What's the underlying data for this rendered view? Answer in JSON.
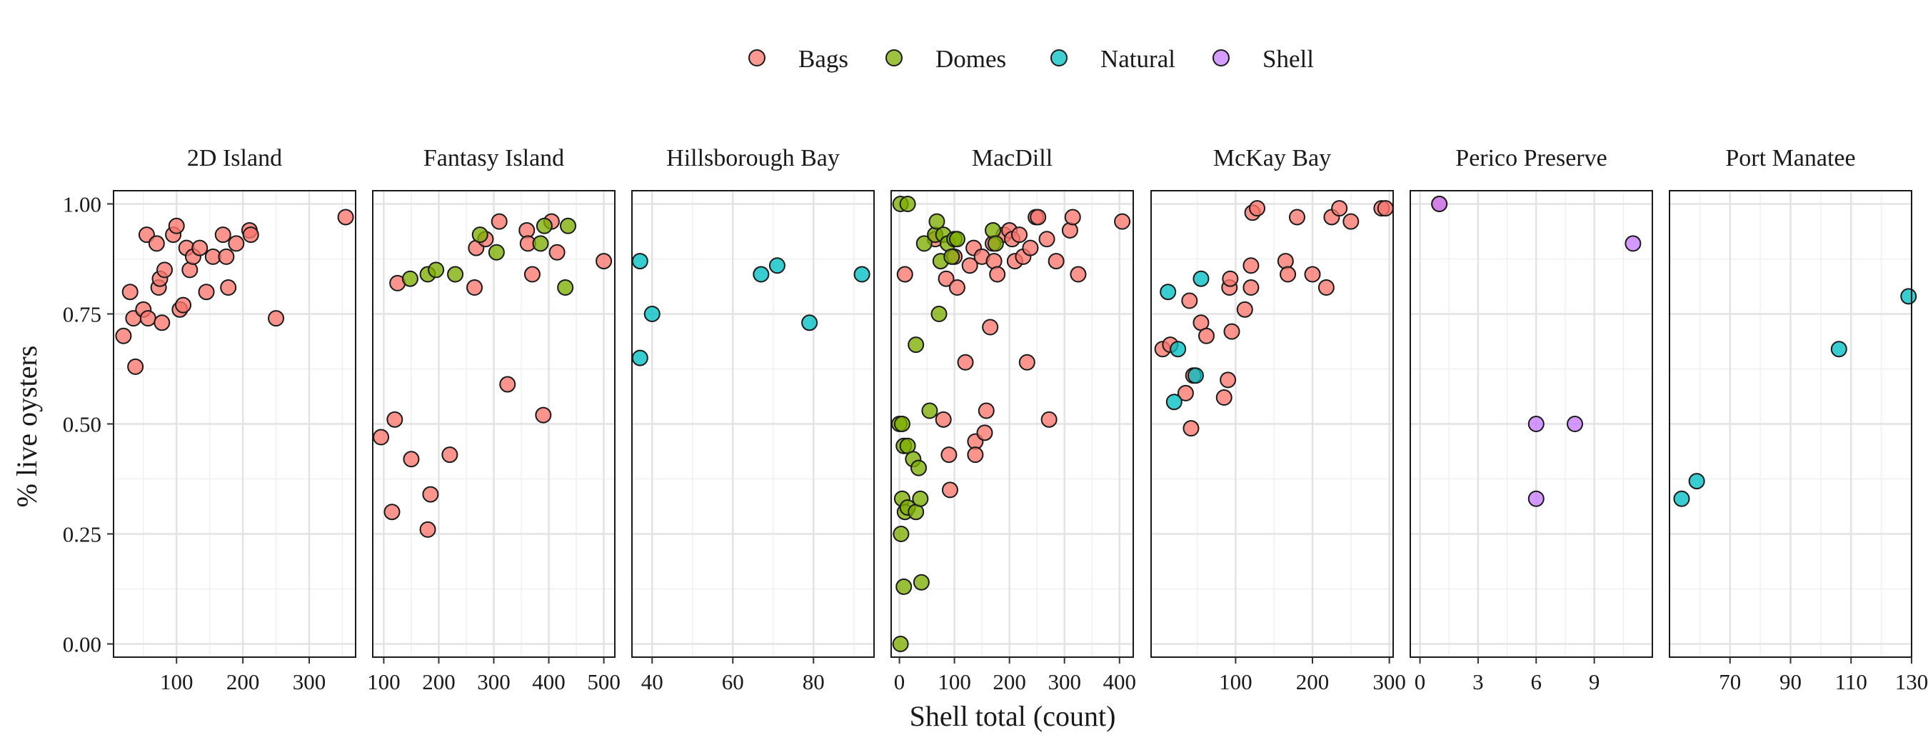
{
  "chart_data": {
    "type": "scatter",
    "xlabel": "Shell total (count)",
    "ylabel": "% live oysters",
    "ylim": [
      -0.03,
      1.03
    ],
    "y_ticks": [
      "0.00",
      "0.25",
      "0.50",
      "0.75",
      "1.00"
    ],
    "grid": true,
    "legend_position": "top",
    "legend": [
      {
        "name": "Bags",
        "color": "#F8766D"
      },
      {
        "name": "Domes",
        "color": "#7CAE00"
      },
      {
        "name": "Natural",
        "color": "#00BFC4"
      },
      {
        "name": "Shell",
        "color": "#C77CFF"
      }
    ],
    "facets": [
      {
        "title": "2D Island",
        "xlim": [
          5,
          370
        ],
        "x_ticks": [
          100,
          200,
          300
        ],
        "points": [
          {
            "g": "Bags",
            "x": 20,
            "y": 0.7
          },
          {
            "g": "Bags",
            "x": 30,
            "y": 0.8
          },
          {
            "g": "Bags",
            "x": 35,
            "y": 0.74
          },
          {
            "g": "Bags",
            "x": 38,
            "y": 0.63
          },
          {
            "g": "Bags",
            "x": 50,
            "y": 0.76
          },
          {
            "g": "Bags",
            "x": 55,
            "y": 0.93
          },
          {
            "g": "Bags",
            "x": 57,
            "y": 0.74
          },
          {
            "g": "Bags",
            "x": 70,
            "y": 0.91
          },
          {
            "g": "Bags",
            "x": 73,
            "y": 0.81
          },
          {
            "g": "Bags",
            "x": 75,
            "y": 0.83
          },
          {
            "g": "Bags",
            "x": 78,
            "y": 0.73
          },
          {
            "g": "Bags",
            "x": 82,
            "y": 0.85
          },
          {
            "g": "Bags",
            "x": 95,
            "y": 0.93
          },
          {
            "g": "Bags",
            "x": 100,
            "y": 0.95
          },
          {
            "g": "Bags",
            "x": 105,
            "y": 0.76
          },
          {
            "g": "Bags",
            "x": 110,
            "y": 0.77
          },
          {
            "g": "Bags",
            "x": 115,
            "y": 0.9
          },
          {
            "g": "Bags",
            "x": 120,
            "y": 0.85
          },
          {
            "g": "Bags",
            "x": 125,
            "y": 0.88
          },
          {
            "g": "Bags",
            "x": 135,
            "y": 0.9
          },
          {
            "g": "Bags",
            "x": 145,
            "y": 0.8
          },
          {
            "g": "Bags",
            "x": 155,
            "y": 0.88
          },
          {
            "g": "Bags",
            "x": 170,
            "y": 0.93
          },
          {
            "g": "Bags",
            "x": 175,
            "y": 0.88
          },
          {
            "g": "Bags",
            "x": 178,
            "y": 0.81
          },
          {
            "g": "Bags",
            "x": 190,
            "y": 0.91
          },
          {
            "g": "Bags",
            "x": 210,
            "y": 0.94
          },
          {
            "g": "Bags",
            "x": 212,
            "y": 0.93
          },
          {
            "g": "Bags",
            "x": 250,
            "y": 0.74
          },
          {
            "g": "Bags",
            "x": 355,
            "y": 0.97
          }
        ]
      },
      {
        "title": "Fantasy Island",
        "xlim": [
          80,
          520
        ],
        "x_ticks": [
          100,
          200,
          300,
          400,
          500
        ],
        "points": [
          {
            "g": "Bags",
            "x": 95,
            "y": 0.47
          },
          {
            "g": "Bags",
            "x": 115,
            "y": 0.3
          },
          {
            "g": "Bags",
            "x": 120,
            "y": 0.51
          },
          {
            "g": "Bags",
            "x": 125,
            "y": 0.82
          },
          {
            "g": "Bags",
            "x": 150,
            "y": 0.42
          },
          {
            "g": "Bags",
            "x": 180,
            "y": 0.26
          },
          {
            "g": "Bags",
            "x": 185,
            "y": 0.34
          },
          {
            "g": "Bags",
            "x": 220,
            "y": 0.43
          },
          {
            "g": "Bags",
            "x": 265,
            "y": 0.81
          },
          {
            "g": "Bags",
            "x": 268,
            "y": 0.9
          },
          {
            "g": "Bags",
            "x": 285,
            "y": 0.92
          },
          {
            "g": "Bags",
            "x": 310,
            "y": 0.96
          },
          {
            "g": "Bags",
            "x": 325,
            "y": 0.59
          },
          {
            "g": "Bags",
            "x": 360,
            "y": 0.94
          },
          {
            "g": "Bags",
            "x": 362,
            "y": 0.91
          },
          {
            "g": "Bags",
            "x": 370,
            "y": 0.84
          },
          {
            "g": "Bags",
            "x": 390,
            "y": 0.52
          },
          {
            "g": "Bags",
            "x": 405,
            "y": 0.96
          },
          {
            "g": "Bags",
            "x": 415,
            "y": 0.89
          },
          {
            "g": "Bags",
            "x": 500,
            "y": 0.87
          },
          {
            "g": "Domes",
            "x": 148,
            "y": 0.83
          },
          {
            "g": "Domes",
            "x": 180,
            "y": 0.84
          },
          {
            "g": "Domes",
            "x": 195,
            "y": 0.85
          },
          {
            "g": "Domes",
            "x": 230,
            "y": 0.84
          },
          {
            "g": "Domes",
            "x": 275,
            "y": 0.93
          },
          {
            "g": "Domes",
            "x": 305,
            "y": 0.89
          },
          {
            "g": "Domes",
            "x": 385,
            "y": 0.91
          },
          {
            "g": "Domes",
            "x": 392,
            "y": 0.95
          },
          {
            "g": "Domes",
            "x": 430,
            "y": 0.81
          },
          {
            "g": "Domes",
            "x": 435,
            "y": 0.95
          }
        ]
      },
      {
        "title": "Hillsborough Bay",
        "xlim": [
          35,
          95
        ],
        "x_ticks": [
          40,
          60,
          80
        ],
        "points": [
          {
            "g": "Natural",
            "x": 37,
            "y": 0.87
          },
          {
            "g": "Natural",
            "x": 37,
            "y": 0.65
          },
          {
            "g": "Natural",
            "x": 40,
            "y": 0.75
          },
          {
            "g": "Natural",
            "x": 67,
            "y": 0.84
          },
          {
            "g": "Natural",
            "x": 71,
            "y": 0.86
          },
          {
            "g": "Natural",
            "x": 79,
            "y": 0.73
          },
          {
            "g": "Natural",
            "x": 92,
            "y": 0.84
          }
        ]
      },
      {
        "title": "MacDill",
        "xlim": [
          -15,
          425
        ],
        "x_ticks": [
          0,
          100,
          200,
          300,
          400
        ],
        "points": [
          {
            "g": "Bags",
            "x": 10,
            "y": 0.84
          },
          {
            "g": "Bags",
            "x": 65,
            "y": 0.92
          },
          {
            "g": "Bags",
            "x": 80,
            "y": 0.51
          },
          {
            "g": "Bags",
            "x": 85,
            "y": 0.83
          },
          {
            "g": "Bags",
            "x": 90,
            "y": 0.43
          },
          {
            "g": "Bags",
            "x": 92,
            "y": 0.35
          },
          {
            "g": "Bags",
            "x": 100,
            "y": 0.88
          },
          {
            "g": "Bags",
            "x": 105,
            "y": 0.81
          },
          {
            "g": "Bags",
            "x": 120,
            "y": 0.64
          },
          {
            "g": "Bags",
            "x": 128,
            "y": 0.86
          },
          {
            "g": "Bags",
            "x": 135,
            "y": 0.9
          },
          {
            "g": "Bags",
            "x": 138,
            "y": 0.46
          },
          {
            "g": "Bags",
            "x": 138,
            "y": 0.43
          },
          {
            "g": "Bags",
            "x": 150,
            "y": 0.88
          },
          {
            "g": "Bags",
            "x": 155,
            "y": 0.48
          },
          {
            "g": "Bags",
            "x": 158,
            "y": 0.53
          },
          {
            "g": "Bags",
            "x": 165,
            "y": 0.72
          },
          {
            "g": "Bags",
            "x": 170,
            "y": 0.91
          },
          {
            "g": "Bags",
            "x": 172,
            "y": 0.87
          },
          {
            "g": "Bags",
            "x": 178,
            "y": 0.84
          },
          {
            "g": "Bags",
            "x": 190,
            "y": 0.93
          },
          {
            "g": "Bags",
            "x": 200,
            "y": 0.94
          },
          {
            "g": "Bags",
            "x": 205,
            "y": 0.92
          },
          {
            "g": "Bags",
            "x": 210,
            "y": 0.87
          },
          {
            "g": "Bags",
            "x": 218,
            "y": 0.93
          },
          {
            "g": "Bags",
            "x": 225,
            "y": 0.88
          },
          {
            "g": "Bags",
            "x": 232,
            "y": 0.64
          },
          {
            "g": "Bags",
            "x": 238,
            "y": 0.9
          },
          {
            "g": "Bags",
            "x": 248,
            "y": 0.97
          },
          {
            "g": "Bags",
            "x": 252,
            "y": 0.97
          },
          {
            "g": "Bags",
            "x": 268,
            "y": 0.92
          },
          {
            "g": "Bags",
            "x": 272,
            "y": 0.51
          },
          {
            "g": "Bags",
            "x": 285,
            "y": 0.87
          },
          {
            "g": "Bags",
            "x": 310,
            "y": 0.94
          },
          {
            "g": "Bags",
            "x": 315,
            "y": 0.97
          },
          {
            "g": "Bags",
            "x": 325,
            "y": 0.84
          },
          {
            "g": "Bags",
            "x": 405,
            "y": 0.96
          },
          {
            "g": "Domes",
            "x": 2,
            "y": 1.0
          },
          {
            "g": "Domes",
            "x": 15,
            "y": 1.0
          },
          {
            "g": "Domes",
            "x": 0,
            "y": 0.5
          },
          {
            "g": "Domes",
            "x": 5,
            "y": 0.5
          },
          {
            "g": "Domes",
            "x": 8,
            "y": 0.45
          },
          {
            "g": "Domes",
            "x": 15,
            "y": 0.45
          },
          {
            "g": "Domes",
            "x": 5,
            "y": 0.33
          },
          {
            "g": "Domes",
            "x": 10,
            "y": 0.3
          },
          {
            "g": "Domes",
            "x": 15,
            "y": 0.31
          },
          {
            "g": "Domes",
            "x": 3,
            "y": 0.25
          },
          {
            "g": "Domes",
            "x": 8,
            "y": 0.13
          },
          {
            "g": "Domes",
            "x": 2,
            "y": 0.0
          },
          {
            "g": "Domes",
            "x": 25,
            "y": 0.42
          },
          {
            "g": "Domes",
            "x": 30,
            "y": 0.68
          },
          {
            "g": "Domes",
            "x": 30,
            "y": 0.3
          },
          {
            "g": "Domes",
            "x": 35,
            "y": 0.4
          },
          {
            "g": "Domes",
            "x": 38,
            "y": 0.33
          },
          {
            "g": "Domes",
            "x": 40,
            "y": 0.14
          },
          {
            "g": "Domes",
            "x": 45,
            "y": 0.91
          },
          {
            "g": "Domes",
            "x": 55,
            "y": 0.53
          },
          {
            "g": "Domes",
            "x": 65,
            "y": 0.93
          },
          {
            "g": "Domes",
            "x": 68,
            "y": 0.96
          },
          {
            "g": "Domes",
            "x": 72,
            "y": 0.75
          },
          {
            "g": "Domes",
            "x": 75,
            "y": 0.87
          },
          {
            "g": "Domes",
            "x": 80,
            "y": 0.93
          },
          {
            "g": "Domes",
            "x": 88,
            "y": 0.91
          },
          {
            "g": "Domes",
            "x": 95,
            "y": 0.88
          },
          {
            "g": "Domes",
            "x": 100,
            "y": 0.92
          },
          {
            "g": "Domes",
            "x": 105,
            "y": 0.92
          },
          {
            "g": "Domes",
            "x": 170,
            "y": 0.94
          },
          {
            "g": "Domes",
            "x": 175,
            "y": 0.91
          }
        ]
      },
      {
        "title": "McKay Bay",
        "xlim": [
          -10,
          305
        ],
        "x_ticks": [
          100,
          200,
          300
        ],
        "points": [
          {
            "g": "Bags",
            "x": 5,
            "y": 0.67
          },
          {
            "g": "Bags",
            "x": 15,
            "y": 0.68
          },
          {
            "g": "Bags",
            "x": 35,
            "y": 0.57
          },
          {
            "g": "Bags",
            "x": 40,
            "y": 0.78
          },
          {
            "g": "Bags",
            "x": 42,
            "y": 0.49
          },
          {
            "g": "Bags",
            "x": 45,
            "y": 0.61
          },
          {
            "g": "Bags",
            "x": 55,
            "y": 0.73
          },
          {
            "g": "Bags",
            "x": 62,
            "y": 0.7
          },
          {
            "g": "Bags",
            "x": 85,
            "y": 0.56
          },
          {
            "g": "Bags",
            "x": 90,
            "y": 0.6
          },
          {
            "g": "Bags",
            "x": 92,
            "y": 0.81
          },
          {
            "g": "Bags",
            "x": 93,
            "y": 0.83
          },
          {
            "g": "Bags",
            "x": 95,
            "y": 0.71
          },
          {
            "g": "Bags",
            "x": 112,
            "y": 0.76
          },
          {
            "g": "Bags",
            "x": 120,
            "y": 0.86
          },
          {
            "g": "Bags",
            "x": 120,
            "y": 0.81
          },
          {
            "g": "Bags",
            "x": 122,
            "y": 0.98
          },
          {
            "g": "Bags",
            "x": 128,
            "y": 0.99
          },
          {
            "g": "Bags",
            "x": 165,
            "y": 0.87
          },
          {
            "g": "Bags",
            "x": 168,
            "y": 0.84
          },
          {
            "g": "Bags",
            "x": 180,
            "y": 0.97
          },
          {
            "g": "Bags",
            "x": 200,
            "y": 0.84
          },
          {
            "g": "Bags",
            "x": 218,
            "y": 0.81
          },
          {
            "g": "Bags",
            "x": 225,
            "y": 0.97
          },
          {
            "g": "Bags",
            "x": 235,
            "y": 0.99
          },
          {
            "g": "Bags",
            "x": 250,
            "y": 0.96
          },
          {
            "g": "Bags",
            "x": 290,
            "y": 0.99
          },
          {
            "g": "Bags",
            "x": 295,
            "y": 0.99
          },
          {
            "g": "Natural",
            "x": 12,
            "y": 0.8
          },
          {
            "g": "Natural",
            "x": 20,
            "y": 0.55
          },
          {
            "g": "Natural",
            "x": 25,
            "y": 0.67
          },
          {
            "g": "Natural",
            "x": 48,
            "y": 0.61
          },
          {
            "g": "Natural",
            "x": 55,
            "y": 0.83
          }
        ]
      },
      {
        "title": "Perico Preserve",
        "xlim": [
          -0.5,
          12
        ],
        "x_ticks": [
          0,
          3,
          6,
          9
        ],
        "points": [
          {
            "g": "Bags",
            "x": 1,
            "y": 1.0
          },
          {
            "g": "Shell",
            "x": 1,
            "y": 1.0
          },
          {
            "g": "Shell",
            "x": 6,
            "y": 0.5
          },
          {
            "g": "Shell",
            "x": 6,
            "y": 0.33
          },
          {
            "g": "Shell",
            "x": 8,
            "y": 0.5
          },
          {
            "g": "Shell",
            "x": 11,
            "y": 0.91
          }
        ]
      },
      {
        "title": "Port Manatee",
        "xlim": [
          50,
          130
        ],
        "x_ticks": [
          70,
          90,
          110,
          130
        ],
        "points": [
          {
            "g": "Natural",
            "x": 54,
            "y": 0.33
          },
          {
            "g": "Natural",
            "x": 59,
            "y": 0.37
          },
          {
            "g": "Natural",
            "x": 106,
            "y": 0.67
          },
          {
            "g": "Natural",
            "x": 129,
            "y": 0.79
          }
        ]
      }
    ]
  }
}
